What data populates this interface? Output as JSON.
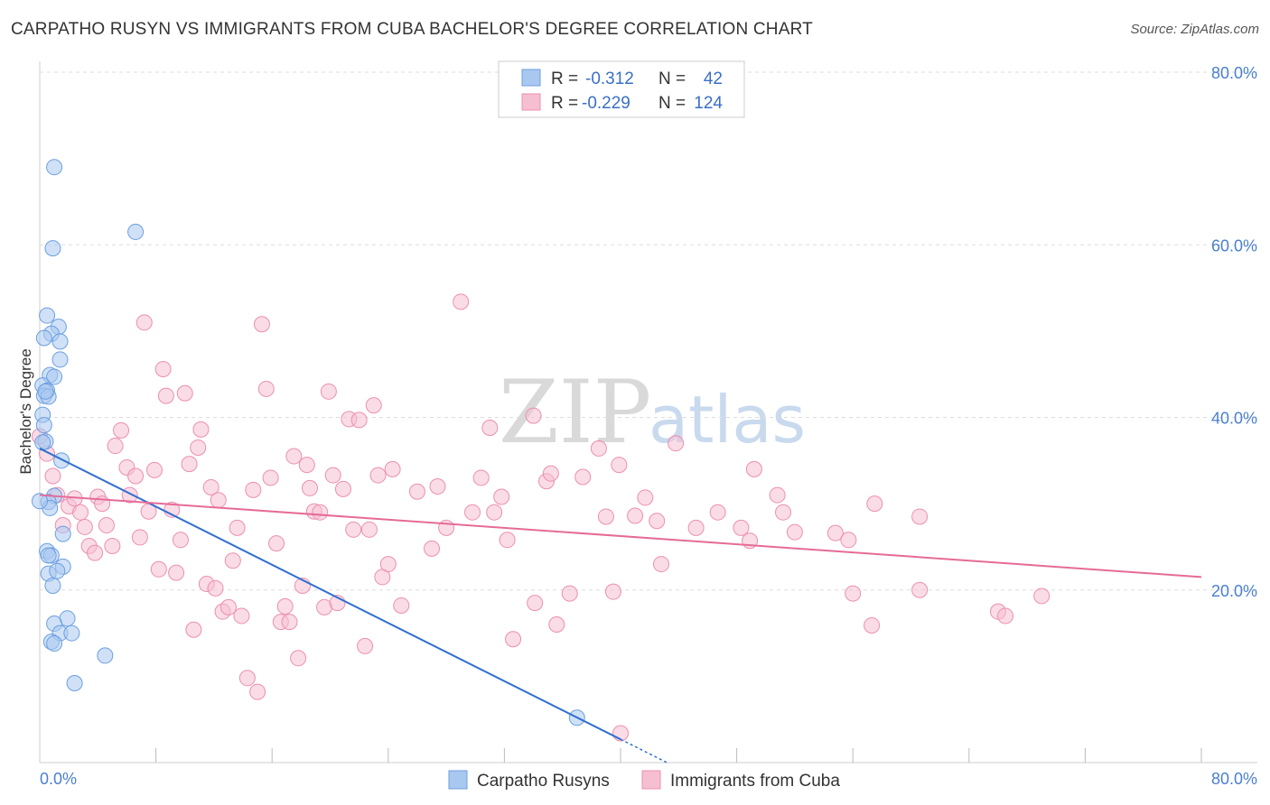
{
  "header": {
    "title": "CARPATHO RUSYN VS IMMIGRANTS FROM CUBA BACHELOR'S DEGREE CORRELATION CHART",
    "source": "Source: ZipAtlas.com"
  },
  "watermark": {
    "zip": "ZIP",
    "atlas": "atlas"
  },
  "colors": {
    "blue_fill": "#a9c8f0",
    "blue_stroke": "#6b9fe0",
    "blue_line": "#2f6fd0",
    "pink_fill": "#f6bfd1",
    "pink_stroke": "#ec8fb0",
    "pink_line": "#e56b97",
    "tick_text": "#4a7fd0",
    "grid": "#dddddd"
  },
  "legend": {
    "rows": [
      {
        "r_label": "R =",
        "r_value": "-0.312",
        "n_label": "N =",
        "n_value": "42",
        "color": "#a9c8f0",
        "stroke": "#6b9fe0"
      },
      {
        "r_label": "R =",
        "r_value": "-0.229",
        "n_label": "N =",
        "n_value": "124",
        "color": "#f6bfd1",
        "stroke": "#ec8fb0"
      }
    ]
  },
  "chart_data": {
    "type": "scatter",
    "title": "CARPATHO RUSYN VS IMMIGRANTS FROM CUBA BACHELOR'S DEGREE CORRELATION CHART",
    "xlabel": "",
    "ylabel": "Bachelor's Degree",
    "xlim": [
      0,
      0.8
    ],
    "ylim": [
      0,
      0.8
    ],
    "x_tick_labels": [
      "0.0%",
      "80.0%"
    ],
    "y_ticks": [
      {
        "value": 0.8,
        "label": "80.0%"
      },
      {
        "value": 0.6,
        "label": "60.0%"
      },
      {
        "value": 0.4,
        "label": "40.0%"
      },
      {
        "value": 0.2,
        "label": "20.0%"
      }
    ],
    "series": [
      {
        "name": "Carpatho Rusyns",
        "r": -0.312,
        "n": 42,
        "trend": {
          "x0": 0.0,
          "y0": 0.364,
          "x1": 0.4,
          "y1": 0.027,
          "dash_to_x": 0.432,
          "dash_to_y": 0.0
        },
        "points": [
          [
            0.01,
            0.69
          ],
          [
            0.066,
            0.615
          ],
          [
            0.009,
            0.596
          ],
          [
            0.005,
            0.518
          ],
          [
            0.013,
            0.505
          ],
          [
            0.008,
            0.497
          ],
          [
            0.003,
            0.492
          ],
          [
            0.014,
            0.488
          ],
          [
            0.014,
            0.467
          ],
          [
            0.007,
            0.449
          ],
          [
            0.01,
            0.447
          ],
          [
            0.002,
            0.437
          ],
          [
            0.005,
            0.431
          ],
          [
            0.003,
            0.425
          ],
          [
            0.006,
            0.424
          ],
          [
            0.002,
            0.403
          ],
          [
            0.003,
            0.391
          ],
          [
            0.004,
            0.372
          ],
          [
            0.015,
            0.35
          ],
          [
            0.01,
            0.309
          ],
          [
            0.006,
            0.302
          ],
          [
            0.007,
            0.295
          ],
          [
            0.016,
            0.265
          ],
          [
            0.005,
            0.245
          ],
          [
            0.008,
            0.24
          ],
          [
            0.016,
            0.227
          ],
          [
            0.006,
            0.219
          ],
          [
            0.009,
            0.205
          ],
          [
            0.019,
            0.167
          ],
          [
            0.01,
            0.161
          ],
          [
            0.014,
            0.15
          ],
          [
            0.022,
            0.15
          ],
          [
            0.008,
            0.14
          ],
          [
            0.01,
            0.138
          ],
          [
            0.045,
            0.124
          ],
          [
            0.024,
            0.092
          ],
          [
            0.37,
            0.052
          ],
          [
            0.0,
            0.303
          ],
          [
            0.002,
            0.371
          ],
          [
            0.004,
            0.43
          ],
          [
            0.006,
            0.24
          ],
          [
            0.012,
            0.222
          ]
        ]
      },
      {
        "name": "Immigrants from Cuba",
        "r": -0.229,
        "n": 124,
        "trend": {
          "x0": 0.0,
          "y0": 0.31,
          "x1": 0.8,
          "y1": 0.215
        },
        "points": [
          [
            0.0,
            0.378
          ],
          [
            0.005,
            0.358
          ],
          [
            0.009,
            0.332
          ],
          [
            0.012,
            0.31
          ],
          [
            0.016,
            0.275
          ],
          [
            0.02,
            0.297
          ],
          [
            0.024,
            0.306
          ],
          [
            0.028,
            0.29
          ],
          [
            0.031,
            0.273
          ],
          [
            0.034,
            0.251
          ],
          [
            0.038,
            0.243
          ],
          [
            0.04,
            0.308
          ],
          [
            0.043,
            0.3
          ],
          [
            0.046,
            0.275
          ],
          [
            0.05,
            0.251
          ],
          [
            0.052,
            0.367
          ],
          [
            0.056,
            0.385
          ],
          [
            0.06,
            0.342
          ],
          [
            0.062,
            0.31
          ],
          [
            0.066,
            0.332
          ],
          [
            0.069,
            0.261
          ],
          [
            0.072,
            0.51
          ],
          [
            0.075,
            0.291
          ],
          [
            0.079,
            0.339
          ],
          [
            0.082,
            0.224
          ],
          [
            0.085,
            0.456
          ],
          [
            0.087,
            0.425
          ],
          [
            0.091,
            0.293
          ],
          [
            0.094,
            0.22
          ],
          [
            0.097,
            0.258
          ],
          [
            0.1,
            0.428
          ],
          [
            0.103,
            0.346
          ],
          [
            0.106,
            0.154
          ],
          [
            0.109,
            0.365
          ],
          [
            0.111,
            0.386
          ],
          [
            0.115,
            0.207
          ],
          [
            0.118,
            0.319
          ],
          [
            0.121,
            0.202
          ],
          [
            0.123,
            0.304
          ],
          [
            0.126,
            0.175
          ],
          [
            0.13,
            0.18
          ],
          [
            0.133,
            0.234
          ],
          [
            0.136,
            0.272
          ],
          [
            0.139,
            0.17
          ],
          [
            0.143,
            0.098
          ],
          [
            0.147,
            0.316
          ],
          [
            0.15,
            0.082
          ],
          [
            0.153,
            0.508
          ],
          [
            0.156,
            0.433
          ],
          [
            0.159,
            0.33
          ],
          [
            0.163,
            0.254
          ],
          [
            0.166,
            0.163
          ],
          [
            0.169,
            0.181
          ],
          [
            0.172,
            0.163
          ],
          [
            0.175,
            0.355
          ],
          [
            0.178,
            0.121
          ],
          [
            0.181,
            0.205
          ],
          [
            0.184,
            0.345
          ],
          [
            0.186,
            0.318
          ],
          [
            0.189,
            0.291
          ],
          [
            0.193,
            0.29
          ],
          [
            0.196,
            0.18
          ],
          [
            0.199,
            0.43
          ],
          [
            0.202,
            0.333
          ],
          [
            0.205,
            0.185
          ],
          [
            0.209,
            0.317
          ],
          [
            0.213,
            0.398
          ],
          [
            0.216,
            0.27
          ],
          [
            0.22,
            0.397
          ],
          [
            0.224,
            0.135
          ],
          [
            0.227,
            0.27
          ],
          [
            0.23,
            0.414
          ],
          [
            0.233,
            0.333
          ],
          [
            0.236,
            0.215
          ],
          [
            0.24,
            0.23
          ],
          [
            0.243,
            0.34
          ],
          [
            0.249,
            0.182
          ],
          [
            0.26,
            0.314
          ],
          [
            0.27,
            0.248
          ],
          [
            0.274,
            0.32
          ],
          [
            0.28,
            0.272
          ],
          [
            0.29,
            0.534
          ],
          [
            0.298,
            0.29
          ],
          [
            0.304,
            0.33
          ],
          [
            0.31,
            0.388
          ],
          [
            0.313,
            0.29
          ],
          [
            0.318,
            0.308
          ],
          [
            0.322,
            0.258
          ],
          [
            0.326,
            0.143
          ],
          [
            0.34,
            0.402
          ],
          [
            0.341,
            0.185
          ],
          [
            0.349,
            0.326
          ],
          [
            0.352,
            0.335
          ],
          [
            0.356,
            0.16
          ],
          [
            0.365,
            0.196
          ],
          [
            0.374,
            0.331
          ],
          [
            0.385,
            0.364
          ],
          [
            0.39,
            0.285
          ],
          [
            0.395,
            0.198
          ],
          [
            0.399,
            0.345
          ],
          [
            0.41,
            0.286
          ],
          [
            0.417,
            0.307
          ],
          [
            0.425,
            0.28
          ],
          [
            0.428,
            0.23
          ],
          [
            0.438,
            0.37
          ],
          [
            0.452,
            0.272
          ],
          [
            0.467,
            0.29
          ],
          [
            0.483,
            0.272
          ],
          [
            0.489,
            0.257
          ],
          [
            0.492,
            0.34
          ],
          [
            0.508,
            0.31
          ],
          [
            0.512,
            0.29
          ],
          [
            0.52,
            0.267
          ],
          [
            0.548,
            0.266
          ],
          [
            0.557,
            0.258
          ],
          [
            0.56,
            0.196
          ],
          [
            0.575,
            0.3
          ],
          [
            0.573,
            0.159
          ],
          [
            0.606,
            0.285
          ],
          [
            0.606,
            0.2
          ],
          [
            0.66,
            0.175
          ],
          [
            0.665,
            0.17
          ],
          [
            0.69,
            0.193
          ],
          [
            0.4,
            0.034
          ]
        ]
      }
    ]
  },
  "bottom_legend": {
    "items": [
      {
        "label": "Carpatho Rusyns",
        "color": "#a9c8f0",
        "stroke": "#6b9fe0"
      },
      {
        "label": "Immigrants from Cuba",
        "color": "#f6bfd1",
        "stroke": "#ec8fb0"
      }
    ]
  }
}
